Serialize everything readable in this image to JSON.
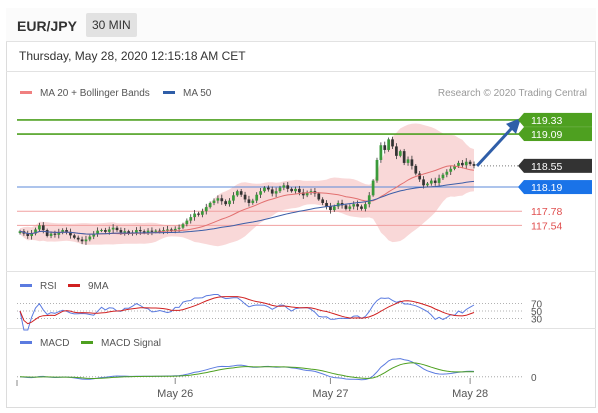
{
  "header": {
    "pair": "EUR/JPY",
    "timeframe": "30 MIN"
  },
  "timestamp": "Thursday, May 28, 2020 12:15:18 AM CET",
  "credit": "Research © 2020 Trading Central",
  "colors": {
    "resistance": "#4ea020",
    "support_line": "#5b8ad8",
    "pivot_label": "#1a73e8",
    "support_red": "#e05050",
    "price_label": "#333333",
    "bollinger": "#f6c8c8",
    "ma20": "#e27070",
    "ma50": "#3b5ea8",
    "rsi": "#5b7be0",
    "rsi_ma": "#d02020",
    "macd": "#5b7be0",
    "macd_signal": "#4ea020",
    "arrow": "#2f5ea8"
  },
  "chart_data": [
    {
      "type": "candlestick",
      "legend": [
        {
          "name": "MA 20 + Bollinger Bands",
          "color": "#f08080"
        },
        {
          "name": "MA 50",
          "color": "#2f5ea8"
        }
      ],
      "x_ticks": [
        "May 26",
        "May 27",
        "May 28"
      ],
      "ylim": [
        116.85,
        119.6
      ],
      "levels": [
        {
          "value": 119.33,
          "label": "119.33",
          "kind": "resistance"
        },
        {
          "value": 119.09,
          "label": "119.09",
          "kind": "resistance"
        },
        {
          "value": 118.55,
          "label": "118.55",
          "kind": "last-price"
        },
        {
          "value": 118.19,
          "label": "118.19",
          "kind": "pivot"
        },
        {
          "value": 117.78,
          "label": "117.78",
          "kind": "support"
        },
        {
          "value": 117.54,
          "label": "117.54",
          "kind": "support"
        }
      ],
      "closes": [
        117.44,
        117.4,
        117.36,
        117.4,
        117.47,
        117.54,
        117.46,
        117.36,
        117.4,
        117.38,
        117.42,
        117.46,
        117.43,
        117.37,
        117.33,
        117.3,
        117.27,
        117.3,
        117.35,
        117.4,
        117.45,
        117.46,
        117.43,
        117.47,
        117.5,
        117.46,
        117.42,
        117.44,
        117.4,
        117.42,
        117.46,
        117.44,
        117.42,
        117.45,
        117.43,
        117.45,
        117.44,
        117.46,
        117.47,
        117.45,
        117.48,
        117.5,
        117.56,
        117.62,
        117.68,
        117.74,
        117.72,
        117.78,
        117.85,
        117.92,
        117.96,
        118.0,
        117.95,
        117.9,
        117.96,
        118.05,
        118.12,
        118.06,
        117.98,
        117.92,
        117.96,
        118.06,
        118.12,
        118.18,
        118.15,
        118.08,
        118.12,
        118.18,
        118.22,
        118.16,
        118.12,
        118.16,
        118.1,
        118.05,
        118.1,
        118.12,
        118.08,
        117.98,
        117.92,
        117.86,
        117.8,
        117.86,
        117.92,
        117.88,
        117.82,
        117.86,
        117.9,
        117.86,
        117.82,
        117.9,
        118.05,
        118.3,
        118.65,
        118.9,
        118.82,
        119.0,
        118.88,
        118.72,
        118.8,
        118.6,
        118.66,
        118.55,
        118.42,
        118.32,
        118.22,
        118.25,
        118.3,
        118.26,
        118.34,
        118.4,
        118.45,
        118.5,
        118.55,
        118.6,
        118.56,
        118.62,
        118.58,
        118.55
      ],
      "annotation": "projected upward move"
    },
    {
      "type": "line",
      "legend": [
        {
          "name": "RSI",
          "color": "#5b7be0"
        },
        {
          "name": "9MA",
          "color": "#d02020"
        }
      ],
      "levels": [
        {
          "value": 70,
          "label": "70"
        },
        {
          "value": 50,
          "label": "50"
        },
        {
          "value": 30,
          "label": "30"
        }
      ]
    },
    {
      "type": "line",
      "legend": [
        {
          "name": "MACD",
          "color": "#5b7be0"
        },
        {
          "name": "MACD Signal",
          "color": "#4ea020"
        }
      ],
      "levels": [
        {
          "value": 0,
          "label": "0"
        }
      ]
    }
  ]
}
